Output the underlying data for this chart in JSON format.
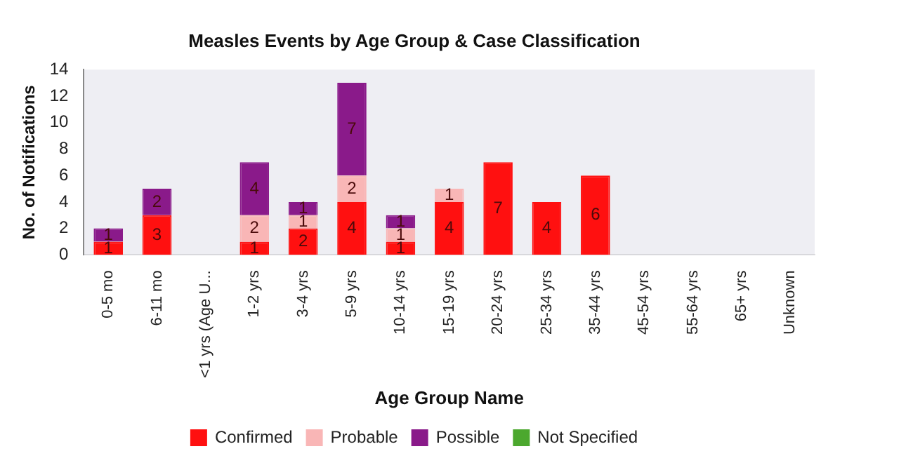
{
  "chart_data": {
    "type": "bar",
    "title": "Measles Events by Age Group & Case Classification",
    "xlabel": "Age Group Name",
    "ylabel": "No. of Notifications",
    "categories": [
      "0-5 mo",
      "6-11 mo",
      "<1 yrs (Age U...",
      "1-2 yrs",
      "3-4 yrs",
      "5-9 yrs",
      "10-14 yrs",
      "15-19 yrs",
      "20-24 yrs",
      "25-34 yrs",
      "35-44 yrs",
      "45-54 yrs",
      "55-64 yrs",
      "65+ yrs",
      "Unknown"
    ],
    "series": [
      {
        "name": "Confirmed",
        "color": "#ff1010",
        "values": [
          1,
          3,
          null,
          1,
          2,
          4,
          1,
          4,
          7,
          4,
          6,
          null,
          null,
          null,
          null
        ]
      },
      {
        "name": "Probable",
        "color": "#f9b6b6",
        "values": [
          null,
          null,
          null,
          2,
          1,
          2,
          1,
          1,
          null,
          null,
          null,
          null,
          null,
          null,
          null
        ]
      },
      {
        "name": "Possible",
        "color": "#8a1a8a",
        "values": [
          1,
          2,
          null,
          4,
          1,
          7,
          1,
          null,
          null,
          null,
          null,
          null,
          null,
          null,
          null
        ]
      },
      {
        "name": "Not Specified",
        "color": "#4ca82e",
        "values": [
          null,
          null,
          null,
          null,
          null,
          null,
          null,
          null,
          null,
          null,
          null,
          null,
          null,
          null,
          null
        ]
      }
    ],
    "stacked": true,
    "ylim": [
      0,
      14
    ],
    "yticks": [
      0,
      2,
      4,
      6,
      8,
      10,
      12,
      14
    ],
    "grid": false,
    "legend": "bottom",
    "data_labels": true
  }
}
